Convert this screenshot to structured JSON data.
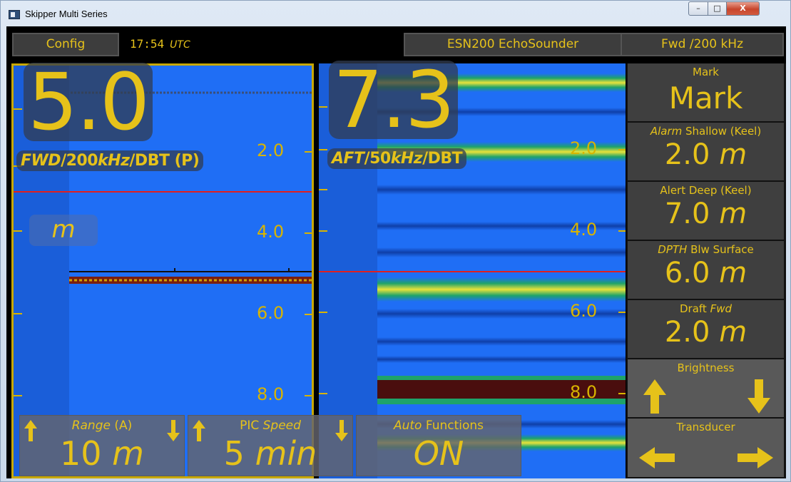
{
  "window": {
    "title": "Skipper Multi Series",
    "controls": {
      "minimize": "–",
      "maximize": "□",
      "close": "X"
    }
  },
  "header": {
    "config_label": "Config",
    "time": "17:54",
    "time_zone": "UTC",
    "device": "ESN200 EchoSounder",
    "channel": "Fwd /200 kHz"
  },
  "left_panel": {
    "depth_value": "5.0",
    "source_parts": {
      "a": "FWD",
      "b": "/200",
      "c": "kHz",
      "d": "/DBT (P)"
    },
    "unit": "m",
    "scale_labels": [
      "2.0",
      "4.0",
      "6.0",
      "8.0"
    ]
  },
  "right_panel": {
    "depth_value": "7.3",
    "source_parts": {
      "a": "AFT",
      "b": "/50",
      "c": "kHz",
      "d": "/DBT"
    },
    "scale_labels": [
      "2.0",
      "4.0",
      "6.0",
      "8.0"
    ]
  },
  "controls": {
    "range": {
      "title": "Range",
      "suffix": "(A)",
      "value": "10",
      "unit": "m"
    },
    "pic_speed": {
      "title": "PIC",
      "title_em": "Speed",
      "value": "5",
      "unit": "min"
    },
    "auto": {
      "title_em": "Auto",
      "title": "Functions",
      "value": "ON"
    }
  },
  "sidebar": {
    "mark": {
      "title": "Mark",
      "value": "Mark"
    },
    "alarm": {
      "title_em": "Alarm",
      "title": "Shallow (Keel)",
      "value": "2.0",
      "unit": "m"
    },
    "alert": {
      "title": "Alert Deep (Keel)",
      "value": "7.0",
      "unit": "m"
    },
    "dpth": {
      "title_em": "DPTH",
      "title": "Blw Surface",
      "value": "6.0",
      "unit": "m"
    },
    "draft": {
      "title": "Draft",
      "title_em": "Fwd",
      "value": "2.0",
      "unit": "m"
    },
    "brightness": {
      "title": "Brightness"
    },
    "transducer": {
      "title": "Transducer"
    }
  },
  "colors": {
    "accent": "#e6c21a",
    "water": "#1f6ef5",
    "alarm_line": "#e01f1f"
  }
}
